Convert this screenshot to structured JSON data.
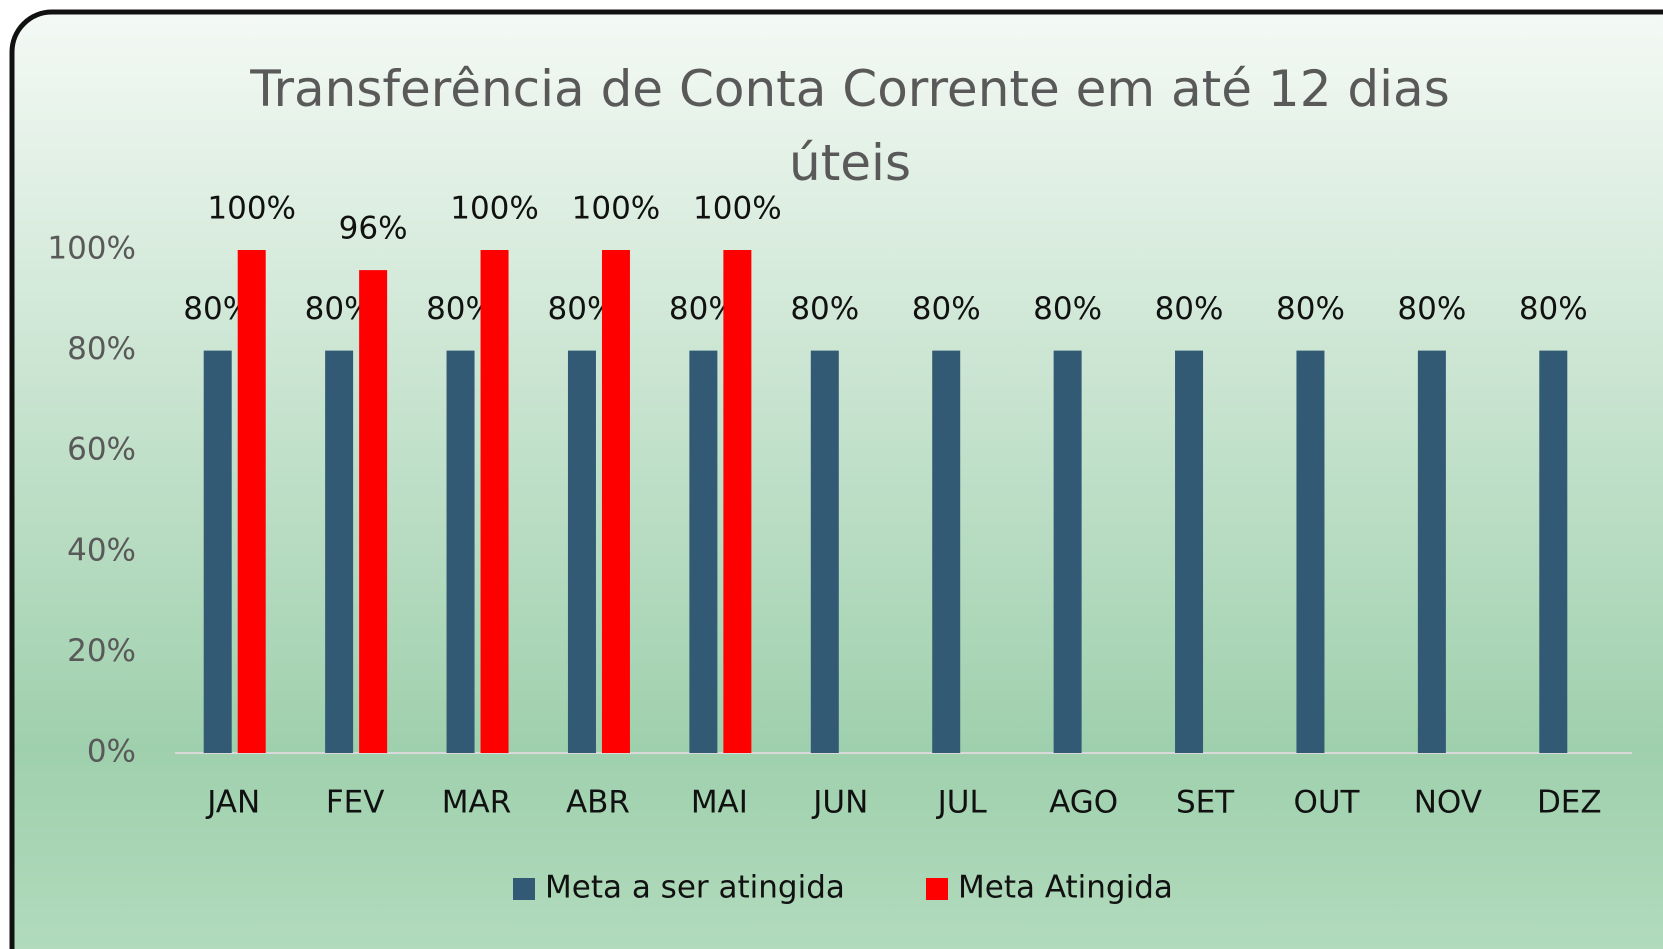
{
  "chart_data": {
    "type": "bar",
    "title": "Transferência de Conta Corrente em até 12 dias úteis",
    "categories": [
      "JAN",
      "FEV",
      "MAR",
      "ABR",
      "MAI",
      "JUN",
      "JUL",
      "AGO",
      "SET",
      "OUT",
      "NOV",
      "DEZ"
    ],
    "series": [
      {
        "name": "Meta a ser atingida",
        "color": "#335a75",
        "values": [
          80,
          80,
          80,
          80,
          80,
          80,
          80,
          80,
          80,
          80,
          80,
          80
        ],
        "value_labels": [
          "80%",
          "80%",
          "80%",
          "80%",
          "80%",
          "80%",
          "80%",
          "80%",
          "80%",
          "80%",
          "80%",
          "80%"
        ]
      },
      {
        "name": "Meta Atingida",
        "color": "#ff0000",
        "values": [
          100,
          96,
          100,
          100,
          100,
          null,
          null,
          null,
          null,
          null,
          null,
          null
        ],
        "value_labels": [
          "100%",
          "96%",
          "100%",
          "100%",
          "100%",
          null,
          null,
          null,
          null,
          null,
          null,
          null
        ]
      }
    ],
    "ylim": [
      0,
      100
    ],
    "yticks": [
      {
        "value": 0,
        "label": "0%"
      },
      {
        "value": 20,
        "label": "20%"
      },
      {
        "value": 40,
        "label": "40%"
      },
      {
        "value": 60,
        "label": "60%"
      },
      {
        "value": 80,
        "label": "80%"
      },
      {
        "value": 100,
        "label": "100%"
      }
    ],
    "grid": false,
    "legend": "bottom"
  }
}
